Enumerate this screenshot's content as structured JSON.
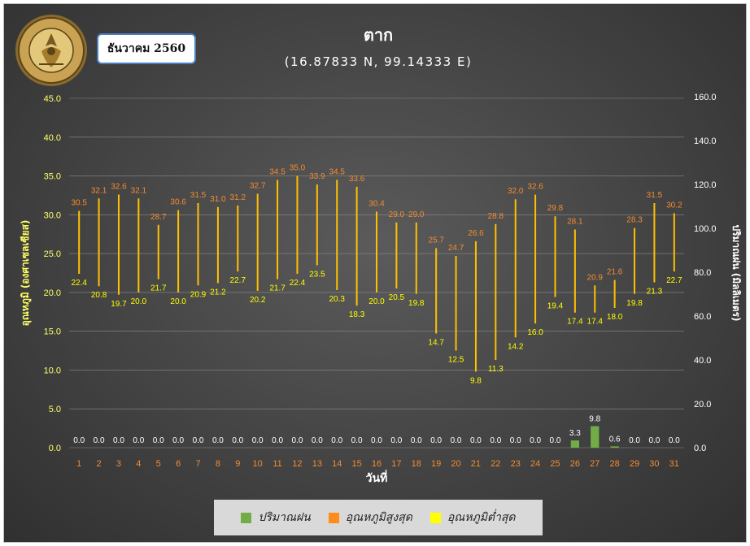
{
  "header": {
    "month_label": "ธันวาคม 2560",
    "title": "ตาก",
    "subtitle": "(16.87833 N, 99.14333 E)"
  },
  "logo": {
    "icon": "meteorological-department-seal",
    "text_top": "กรมอุตุนิยมวิทยา",
    "text_bottom": "METEOROLOGICAL DEPARTMENT"
  },
  "colors": {
    "rain": "#70ad47",
    "max_temp": "#f58b2f",
    "min_temp": "#ffff00",
    "range_line": "#ffc000",
    "left_axis": "#ffff66",
    "right_axis": "#ffffff",
    "day_labels": "#f58b2f"
  },
  "legend": [
    {
      "label": "ปริมาณฝน",
      "color": "#70ad47"
    },
    {
      "label": "อุณหภูมิสูงสุด",
      "color": "#ff8c1a"
    },
    {
      "label": "อุณหภูมิต่ำสุด",
      "color": "#ffff00"
    }
  ],
  "chart_data": {
    "type": "bar",
    "xlabel": "วันที่",
    "ylabel_left": "อุณหภูมิ (องศาเซลเซียส)",
    "ylabel_right": "ปริมาณฝน (มิลลิเมตร)",
    "ylim_left": [
      0,
      45
    ],
    "yticks_left": [
      "0.0",
      "5.0",
      "10.0",
      "15.0",
      "20.0",
      "25.0",
      "30.0",
      "35.0",
      "40.0",
      "45.0"
    ],
    "ylim_right": [
      0,
      160
    ],
    "yticks_right": [
      "0.0",
      "20.0",
      "40.0",
      "60.0",
      "80.0",
      "100.0",
      "120.0",
      "140.0",
      "160.0"
    ],
    "grid": true,
    "categories": [
      "1",
      "2",
      "3",
      "4",
      "5",
      "6",
      "7",
      "8",
      "9",
      "10",
      "11",
      "12",
      "13",
      "14",
      "15",
      "16",
      "17",
      "18",
      "19",
      "20",
      "21",
      "22",
      "23",
      "24",
      "25",
      "26",
      "27",
      "28",
      "29",
      "30",
      "31"
    ],
    "series": [
      {
        "name": "ปริมาณฝน",
        "kind": "bar",
        "axis": "right",
        "values": [
          0,
          0,
          0,
          0,
          0,
          0,
          0,
          0,
          0,
          0,
          0,
          0,
          0,
          0,
          0,
          0,
          0,
          0,
          0,
          0,
          0,
          0,
          0,
          0,
          0,
          3.3,
          9.8,
          0.6,
          0,
          0,
          0
        ]
      },
      {
        "name": "อุณหภูมิสูงสุด",
        "kind": "high",
        "axis": "left",
        "values": [
          30.5,
          32.1,
          32.6,
          32.1,
          28.7,
          30.6,
          31.5,
          31.0,
          31.2,
          32.7,
          34.5,
          35.0,
          33.9,
          34.5,
          33.6,
          30.4,
          29.0,
          29.0,
          25.7,
          24.7,
          26.6,
          28.8,
          32.0,
          32.6,
          29.8,
          28.1,
          20.9,
          21.6,
          28.3,
          31.5,
          30.2
        ]
      },
      {
        "name": "อุณหภูมิต่ำสุด",
        "kind": "low",
        "axis": "left",
        "values": [
          22.4,
          20.8,
          19.7,
          20.0,
          21.7,
          20.0,
          20.9,
          21.2,
          22.7,
          20.2,
          21.7,
          22.4,
          23.5,
          20.3,
          18.3,
          20.0,
          20.5,
          19.8,
          14.7,
          12.5,
          9.8,
          11.3,
          14.2,
          16.0,
          19.4,
          17.4,
          17.4,
          18.0,
          19.8,
          21.3,
          22.7
        ]
      }
    ]
  }
}
